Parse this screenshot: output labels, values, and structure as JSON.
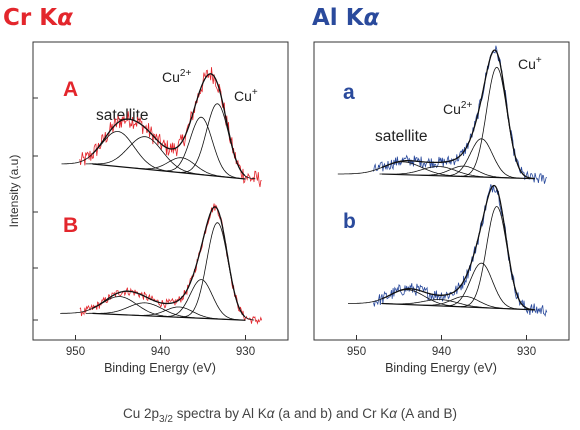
{
  "caption": {
    "prefix": "Cu 2p",
    "subscript": "3/2",
    "middle": " spectra by Al K",
    "alpha1": "α",
    "part2": " (a and b) and Cr K",
    "alpha2": "α",
    "part3": " (A and B)"
  },
  "colors": {
    "cr": "#e3262c",
    "al": "#2a4a9c",
    "fit": "#111111",
    "axis": "#333333"
  },
  "chart_data": [
    {
      "type": "line",
      "header": {
        "text": "Cr K",
        "alpha": "α",
        "color": "#e3262c"
      },
      "xlabel": "Binding Energy (eV)",
      "ylabel": "Intensity (a.u)",
      "xlim": [
        955,
        925
      ],
      "x_reversed": true,
      "xticks": [
        950,
        940,
        930
      ],
      "y_units": "arbitrary",
      "panels": [
        {
          "letter": "A",
          "letter_color": "#e3262c",
          "annotations": [
            {
              "text": "satellite",
              "kind": "plain"
            },
            {
              "base": "Cu",
              "sup": "2+"
            },
            {
              "base": "Cu",
              "sup": "+"
            }
          ],
          "background": {
            "start": [
              948,
              16
            ],
            "end": [
              930,
              4
            ]
          },
          "peaks": [
            {
              "center": 933.3,
              "height": 58,
              "width": 1.3
            },
            {
              "center": 935.2,
              "height": 46,
              "width": 1.3
            },
            {
              "center": 937.5,
              "height": 12,
              "width": 1.6
            },
            {
              "center": 941.8,
              "height": 26,
              "width": 2.0
            },
            {
              "center": 945.0,
              "height": 28,
              "width": 1.9
            }
          ],
          "noise": 7,
          "data_range": [
            949.5,
            928
          ],
          "data_color": "#e3262c"
        },
        {
          "letter": "B",
          "letter_color": "#e3262c",
          "annotations": [],
          "background": {
            "start": [
              948,
              10
            ],
            "end": [
              930,
              2
            ]
          },
          "peaks": [
            {
              "center": 933.3,
              "height": 112,
              "width": 1.25
            },
            {
              "center": 935.2,
              "height": 45,
              "width": 1.3
            },
            {
              "center": 937.8,
              "height": 12,
              "width": 1.6
            },
            {
              "center": 941.8,
              "height": 15,
              "width": 2.0
            },
            {
              "center": 944.8,
              "height": 21,
              "width": 2.0
            }
          ],
          "noise": 5,
          "data_range": [
            949.5,
            928
          ],
          "data_color": "#e3262c"
        }
      ]
    },
    {
      "type": "line",
      "header": {
        "text": "Al K",
        "alpha": "α",
        "color": "#2a4a9c"
      },
      "xlabel": "Binding Energy (eV)",
      "ylabel": "",
      "xlim": [
        955,
        925
      ],
      "x_reversed": true,
      "xticks": [
        950,
        940,
        930
      ],
      "y_units": "arbitrary",
      "panels": [
        {
          "letter": "a",
          "letter_color": "#2a4a9c",
          "annotations": [
            {
              "text": "satellite",
              "kind": "plain"
            },
            {
              "base": "Cu",
              "sup": "2+"
            },
            {
              "base": "Cu",
              "sup": "+"
            }
          ],
          "background": {
            "start": [
              947,
              6
            ],
            "end": [
              929,
              2
            ]
          },
          "peaks": [
            {
              "center": 933.5,
              "height": 95,
              "width": 1.2
            },
            {
              "center": 935.3,
              "height": 33,
              "width": 1.3
            },
            {
              "center": 937.4,
              "height": 9,
              "width": 1.6
            },
            {
              "center": 940.3,
              "height": 8,
              "width": 2.0
            },
            {
              "center": 944.5,
              "height": 11,
              "width": 2.2
            }
          ],
          "noise": 5,
          "data_range": [
            948,
            927.5
          ],
          "data_color": "#2a4a9c"
        },
        {
          "letter": "b",
          "letter_color": "#2a4a9c",
          "annotations": [],
          "background": {
            "start": [
              947,
              8
            ],
            "end": [
              929,
              2
            ]
          },
          "peaks": [
            {
              "center": 933.5,
              "height": 96,
              "width": 1.2
            },
            {
              "center": 935.3,
              "height": 42,
              "width": 1.3
            },
            {
              "center": 937.2,
              "height": 10,
              "width": 1.6
            },
            {
              "center": 940.1,
              "height": 6,
              "width": 2.0
            },
            {
              "center": 944.0,
              "height": 14,
              "width": 2.0
            }
          ],
          "noise": 6,
          "data_range": [
            948,
            927.5
          ],
          "data_color": "#2a4a9c"
        }
      ]
    }
  ]
}
